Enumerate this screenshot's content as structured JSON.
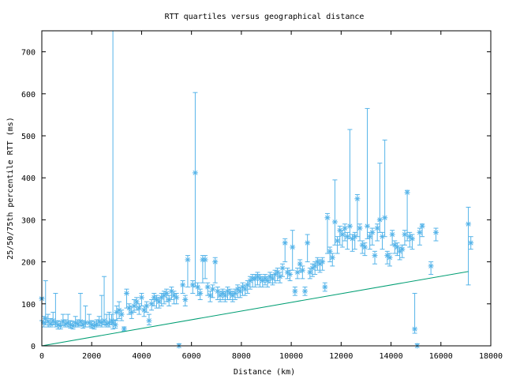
{
  "chart_data": {
    "type": "scatter",
    "title": "RTT quartiles versus geographical distance",
    "xlabel": "Distance (km)",
    "ylabel": "25/50/75th percentile RTT (ms)",
    "xlim": [
      0,
      18000
    ],
    "ylim": [
      0,
      750
    ],
    "xticks": [
      "0",
      "2000",
      "4000",
      "6000",
      "8000",
      "10000",
      "12000",
      "14000",
      "16000",
      "18000"
    ],
    "yticks": [
      "0",
      "100",
      "200",
      "300",
      "400",
      "500",
      "600",
      "700"
    ],
    "grid": false,
    "legend": "none",
    "colors": {
      "median": "#56b4e9",
      "baseline": "#009e73"
    },
    "series": [
      {
        "style": "yerrorbars",
        "points": [
          [
            0,
            112,
            60,
            115
          ],
          [
            80,
            55,
            45,
            70
          ],
          [
            150,
            65,
            50,
            155
          ],
          [
            250,
            58,
            45,
            75
          ],
          [
            350,
            52,
            45,
            65
          ],
          [
            450,
            60,
            50,
            80
          ],
          [
            550,
            55,
            45,
            125
          ],
          [
            650,
            50,
            40,
            60
          ],
          [
            750,
            48,
            40,
            58
          ],
          [
            850,
            58,
            48,
            75
          ],
          [
            950,
            52,
            45,
            62
          ],
          [
            1050,
            55,
            45,
            75
          ],
          [
            1150,
            50,
            42,
            60
          ],
          [
            1250,
            48,
            40,
            58
          ],
          [
            1350,
            55,
            45,
            70
          ],
          [
            1450,
            52,
            45,
            62
          ],
          [
            1550,
            58,
            48,
            125
          ],
          [
            1650,
            50,
            42,
            60
          ],
          [
            1750,
            55,
            45,
            95
          ],
          [
            1900,
            55,
            45,
            75
          ],
          [
            2000,
            50,
            42,
            60
          ],
          [
            2100,
            48,
            40,
            58
          ],
          [
            2200,
            52,
            45,
            62
          ],
          [
            2300,
            58,
            48,
            70
          ],
          [
            2400,
            55,
            45,
            120
          ],
          [
            2500,
            60,
            50,
            165
          ],
          [
            2600,
            52,
            45,
            75
          ],
          [
            2700,
            55,
            45,
            80
          ],
          [
            2800,
            60,
            50,
            75
          ],
          [
            2850,
            55,
            40,
            750
          ],
          [
            2950,
            50,
            42,
            62
          ],
          [
            3000,
            80,
            60,
            95
          ],
          [
            3100,
            85,
            65,
            105
          ],
          [
            3200,
            75,
            60,
            85
          ],
          [
            3300,
            40,
            35,
            45
          ],
          [
            3400,
            125,
            90,
            135
          ],
          [
            3500,
            90,
            75,
            100
          ],
          [
            3600,
            80,
            65,
            95
          ],
          [
            3700,
            95,
            80,
            110
          ],
          [
            3800,
            105,
            85,
            115
          ],
          [
            3900,
            90,
            75,
            100
          ],
          [
            4000,
            115,
            95,
            125
          ],
          [
            4100,
            85,
            70,
            95
          ],
          [
            4200,
            95,
            80,
            105
          ],
          [
            4300,
            60,
            50,
            75
          ],
          [
            4400,
            100,
            85,
            110
          ],
          [
            4500,
            115,
            95,
            125
          ],
          [
            4600,
            110,
            90,
            120
          ],
          [
            4700,
            105,
            90,
            115
          ],
          [
            4800,
            115,
            95,
            125
          ],
          [
            4900,
            120,
            100,
            130
          ],
          [
            5000,
            125,
            105,
            135
          ],
          [
            5100,
            110,
            95,
            120
          ],
          [
            5200,
            130,
            110,
            140
          ],
          [
            5300,
            120,
            100,
            130
          ],
          [
            5400,
            115,
            100,
            125
          ],
          [
            5500,
            0,
            0,
            5
          ],
          [
            5650,
            145,
            125,
            155
          ],
          [
            5750,
            110,
            95,
            120
          ],
          [
            5850,
            205,
            140,
            215
          ],
          [
            6050,
            145,
            125,
            155
          ],
          [
            6150,
            412,
            140,
            603
          ],
          [
            6250,
            140,
            120,
            150
          ],
          [
            6350,
            125,
            110,
            135
          ],
          [
            6450,
            205,
            150,
            215
          ],
          [
            6550,
            205,
            160,
            215
          ],
          [
            6650,
            140,
            120,
            150
          ],
          [
            6750,
            120,
            105,
            130
          ],
          [
            6850,
            135,
            115,
            145
          ],
          [
            6950,
            200,
            150,
            210
          ],
          [
            7050,
            130,
            110,
            140
          ],
          [
            7150,
            120,
            105,
            130
          ],
          [
            7250,
            125,
            110,
            135
          ],
          [
            7350,
            120,
            105,
            130
          ],
          [
            7450,
            130,
            110,
            140
          ],
          [
            7550,
            125,
            110,
            135
          ],
          [
            7650,
            120,
            105,
            130
          ],
          [
            7750,
            125,
            110,
            135
          ],
          [
            7850,
            135,
            115,
            145
          ],
          [
            7950,
            130,
            115,
            140
          ],
          [
            8050,
            140,
            120,
            150
          ],
          [
            8150,
            135,
            120,
            145
          ],
          [
            8250,
            145,
            125,
            155
          ],
          [
            8350,
            155,
            135,
            165
          ],
          [
            8450,
            160,
            140,
            170
          ],
          [
            8550,
            160,
            140,
            170
          ],
          [
            8650,
            165,
            145,
            175
          ],
          [
            8750,
            160,
            140,
            170
          ],
          [
            8850,
            155,
            140,
            165
          ],
          [
            8950,
            160,
            145,
            170
          ],
          [
            9050,
            155,
            140,
            165
          ],
          [
            9150,
            165,
            150,
            175
          ],
          [
            9250,
            160,
            145,
            170
          ],
          [
            9350,
            170,
            150,
            180
          ],
          [
            9450,
            175,
            155,
            185
          ],
          [
            9550,
            165,
            150,
            175
          ],
          [
            9650,
            185,
            165,
            195
          ],
          [
            9750,
            245,
            200,
            255
          ],
          [
            9850,
            175,
            160,
            185
          ],
          [
            9950,
            170,
            155,
            180
          ],
          [
            10050,
            235,
            180,
            275
          ],
          [
            10150,
            130,
            120,
            140
          ],
          [
            10250,
            175,
            160,
            185
          ],
          [
            10350,
            195,
            175,
            205
          ],
          [
            10450,
            180,
            160,
            190
          ],
          [
            10550,
            130,
            120,
            140
          ],
          [
            10650,
            245,
            200,
            265
          ],
          [
            10750,
            175,
            160,
            185
          ],
          [
            10850,
            185,
            165,
            195
          ],
          [
            10950,
            190,
            170,
            200
          ],
          [
            11050,
            200,
            180,
            210
          ],
          [
            11150,
            195,
            175,
            205
          ],
          [
            11250,
            200,
            180,
            210
          ],
          [
            11350,
            140,
            130,
            150
          ],
          [
            11450,
            305,
            220,
            315
          ],
          [
            11550,
            225,
            200,
            235
          ],
          [
            11650,
            210,
            190,
            220
          ],
          [
            11750,
            295,
            240,
            395
          ],
          [
            11850,
            250,
            220,
            260
          ],
          [
            11950,
            275,
            240,
            285
          ],
          [
            12050,
            265,
            235,
            275
          ],
          [
            12150,
            280,
            250,
            290
          ],
          [
            12250,
            260,
            230,
            270
          ],
          [
            12350,
            285,
            255,
            515
          ],
          [
            12450,
            255,
            225,
            265
          ],
          [
            12550,
            260,
            230,
            270
          ],
          [
            12650,
            350,
            260,
            360
          ],
          [
            12750,
            280,
            250,
            290
          ],
          [
            12850,
            240,
            220,
            250
          ],
          [
            12950,
            235,
            215,
            245
          ],
          [
            13050,
            285,
            255,
            565
          ],
          [
            13150,
            260,
            230,
            270
          ],
          [
            13250,
            270,
            240,
            280
          ],
          [
            13350,
            215,
            195,
            225
          ],
          [
            13450,
            280,
            250,
            290
          ],
          [
            13550,
            300,
            270,
            435
          ],
          [
            13650,
            260,
            230,
            270
          ],
          [
            13750,
            305,
            260,
            490
          ],
          [
            13850,
            215,
            195,
            225
          ],
          [
            13950,
            210,
            190,
            220
          ],
          [
            14050,
            265,
            240,
            275
          ],
          [
            14150,
            240,
            220,
            250
          ],
          [
            14250,
            235,
            215,
            245
          ],
          [
            14350,
            225,
            205,
            235
          ],
          [
            14450,
            230,
            210,
            240
          ],
          [
            14550,
            265,
            240,
            275
          ],
          [
            14650,
            365,
            250,
            370
          ],
          [
            14750,
            260,
            235,
            270
          ],
          [
            14850,
            255,
            230,
            265
          ],
          [
            14950,
            40,
            30,
            125
          ],
          [
            15050,
            0,
            0,
            5
          ],
          [
            15150,
            270,
            240,
            280
          ],
          [
            15250,
            285,
            260,
            290
          ],
          [
            15600,
            190,
            170,
            200
          ],
          [
            15800,
            270,
            250,
            280
          ],
          [
            17100,
            290,
            145,
            330
          ],
          [
            17200,
            245,
            230,
            260
          ]
        ]
      },
      {
        "style": "line",
        "x": [
          0,
          17100
        ],
        "y": [
          0,
          177
        ]
      }
    ]
  }
}
